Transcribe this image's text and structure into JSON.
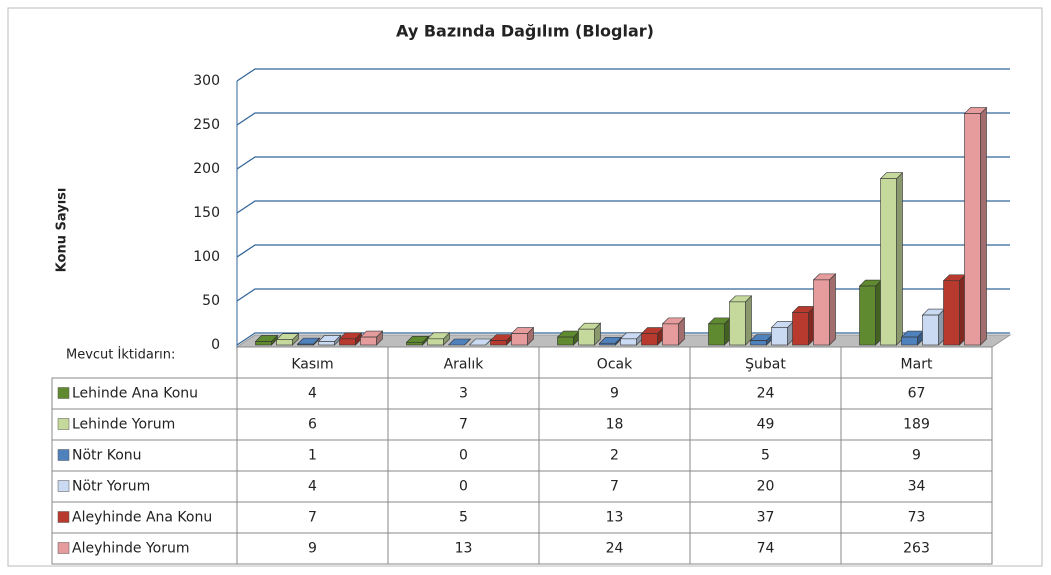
{
  "chart_data": {
    "type": "bar3d",
    "title": "Ay Bazında Dağılım (Bloglar)",
    "y_axis_label": "Konu Sayısı",
    "table_label": "Mevcut İktidarın:",
    "categories": [
      "Kasım",
      "Aralık",
      "Ocak",
      "Şubat",
      "Mart"
    ],
    "series": [
      {
        "name": "Lehinde Ana Konu",
        "color": "#5f8a2f",
        "values": [
          4,
          3,
          9,
          24,
          67
        ]
      },
      {
        "name": "Lehinde Yorum",
        "color": "#c4d99b",
        "values": [
          6,
          7,
          18,
          49,
          189
        ]
      },
      {
        "name": "Nötr Konu",
        "color": "#4f81bd",
        "values": [
          1,
          0,
          2,
          5,
          9
        ]
      },
      {
        "name": "Nötr Yorum",
        "color": "#c9daf2",
        "values": [
          4,
          0,
          7,
          20,
          34
        ]
      },
      {
        "name": "Aleyhinde Ana Konu",
        "color": "#b83a2e",
        "values": [
          7,
          5,
          13,
          37,
          73
        ]
      },
      {
        "name": "Aleyhinde Yorum",
        "color": "#e69c9c",
        "values": [
          9,
          13,
          24,
          74,
          263
        ]
      }
    ],
    "ylim": [
      0,
      300
    ],
    "yticks": [
      0,
      50,
      100,
      150,
      200,
      250,
      300
    ],
    "grid": true
  }
}
